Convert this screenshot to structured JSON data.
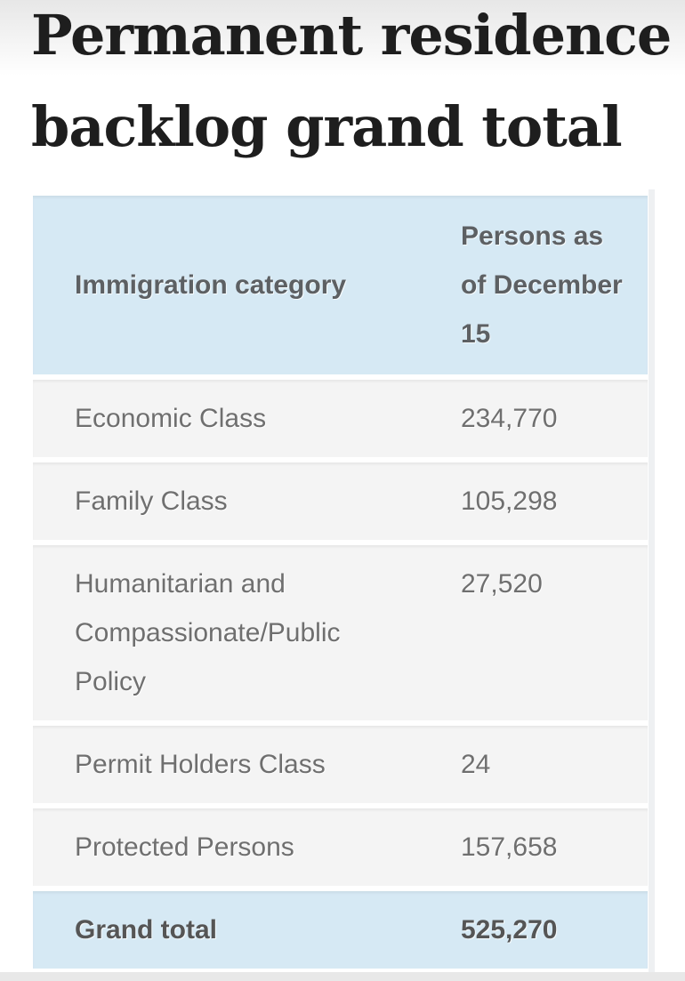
{
  "page": {
    "title": "Permanent residence backlog grand total"
  },
  "table": {
    "header": {
      "category": "Immigration category",
      "value": "Persons as\nof December\n15",
      "value_text": "Persons as of December 15"
    },
    "rows": [
      {
        "category": "Economic Class",
        "value": "234,770"
      },
      {
        "category": "Family Class",
        "value": "105,298"
      },
      {
        "category": "Humanitarian and Compassionate/Public Policy",
        "value": "27,520"
      },
      {
        "category": "Permit Holders Class",
        "value": "24"
      },
      {
        "category": "Protected Persons",
        "value": "157,658"
      }
    ],
    "footer": {
      "category": "Grand total",
      "value": "525,270"
    }
  },
  "colors": {
    "header_bg": "#d6e9f4",
    "footer_bg": "#d6e9f4",
    "row_bg": "#f4f4f4",
    "title_text": "#1e1e1e",
    "header_text": "#5d6063",
    "body_text": "#6f6f6f",
    "footer_text": "#555555",
    "top_fade": "#e7e7e7",
    "bottom_strip": "#e8e8e8"
  }
}
